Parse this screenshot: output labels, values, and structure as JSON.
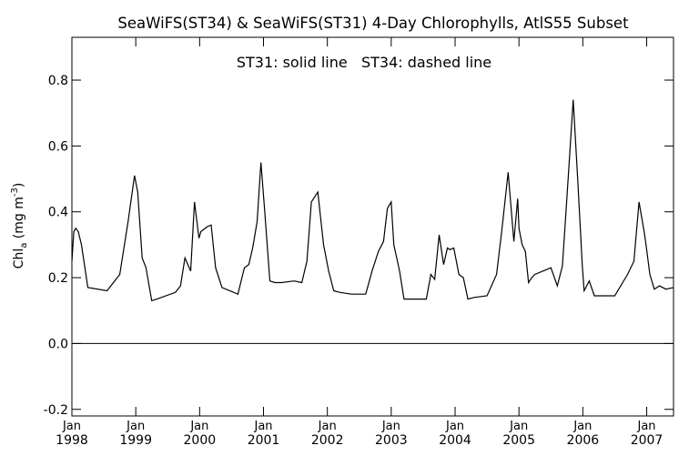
{
  "chart_data": {
    "type": "line",
    "title": "SeaWiFS(ST34) & SeaWiFS(ST31) 4-Day Chlorophylls, AtlS55 Subset",
    "annotation": "ST31: solid line   ST34: dashed line",
    "ylabel": {
      "main": "Chl",
      "sub": "a",
      "unit_open": " (mg m",
      "unit_sup": "-3",
      "unit_close": ")"
    },
    "xlim": [
      1998.0,
      2007.42
    ],
    "ylim": [
      -0.22,
      0.93
    ],
    "y_ticks": [
      -0.2,
      0.0,
      0.2,
      0.4,
      0.6,
      0.8
    ],
    "y_tick_labels": [
      "-0.2",
      "0.0",
      "0.2",
      "0.4",
      "0.6",
      "0.8"
    ],
    "x_ticks": [
      1998,
      1999,
      2000,
      2001,
      2002,
      2003,
      2004,
      2005,
      2006,
      2007
    ],
    "x_tick_month": "Jan",
    "x_tick_years": [
      "1998",
      "1999",
      "2000",
      "2001",
      "2002",
      "2003",
      "2004",
      "2005",
      "2006",
      "2007"
    ],
    "zero_line": true,
    "grid": false,
    "series": [
      {
        "name": "ST31",
        "style": "solid",
        "color": "#000000",
        "x": [
          1998.0,
          1998.03,
          1998.06,
          1998.1,
          1998.15,
          1998.25,
          1998.55,
          1998.75,
          1998.88,
          1998.98,
          1999.03,
          1999.1,
          1999.16,
          1999.25,
          1999.33,
          1999.62,
          1999.7,
          1999.77,
          1999.86,
          1999.92,
          1999.99,
          2000.02,
          2000.12,
          2000.18,
          2000.25,
          2000.35,
          2000.6,
          2000.7,
          2000.77,
          2000.83,
          2000.9,
          2000.96,
          2001.02,
          2001.1,
          2001.18,
          2001.28,
          2001.48,
          2001.6,
          2001.68,
          2001.75,
          2001.85,
          2001.94,
          2002.02,
          2002.1,
          2002.2,
          2002.38,
          2002.6,
          2002.7,
          2002.8,
          2002.88,
          2002.94,
          2003.0,
          2003.04,
          2003.13,
          2003.2,
          2003.26,
          2003.55,
          2003.62,
          2003.68,
          2003.75,
          2003.82,
          2003.88,
          2003.92,
          2003.98,
          2004.06,
          2004.13,
          2004.2,
          2004.3,
          2004.5,
          2004.65,
          2004.73,
          2004.83,
          2004.92,
          2004.98,
          2005.0,
          2005.05,
          2005.1,
          2005.15,
          2005.2,
          2005.25,
          2005.5,
          2005.6,
          2005.68,
          2005.75,
          2005.85,
          2005.92,
          2005.99,
          2006.02,
          2006.1,
          2006.18,
          2006.26,
          2006.32,
          2006.5,
          2006.7,
          2006.8,
          2006.88,
          2006.96,
          2006.99,
          2007.05,
          2007.12,
          2007.2,
          2007.3,
          2007.42
        ],
        "y": [
          0.25,
          0.34,
          0.35,
          0.34,
          0.3,
          0.17,
          0.16,
          0.21,
          0.37,
          0.51,
          0.46,
          0.26,
          0.23,
          0.13,
          0.135,
          0.155,
          0.175,
          0.26,
          0.22,
          0.43,
          0.32,
          0.34,
          0.355,
          0.36,
          0.23,
          0.17,
          0.15,
          0.23,
          0.24,
          0.29,
          0.37,
          0.55,
          0.4,
          0.19,
          0.185,
          0.185,
          0.19,
          0.185,
          0.25,
          0.43,
          0.46,
          0.3,
          0.22,
          0.16,
          0.155,
          0.15,
          0.15,
          0.22,
          0.28,
          0.31,
          0.41,
          0.43,
          0.3,
          0.22,
          0.135,
          0.135,
          0.135,
          0.21,
          0.195,
          0.33,
          0.24,
          0.29,
          0.285,
          0.29,
          0.21,
          0.2,
          0.135,
          0.14,
          0.145,
          0.21,
          0.34,
          0.52,
          0.31,
          0.44,
          0.35,
          0.3,
          0.28,
          0.185,
          0.2,
          0.21,
          0.23,
          0.175,
          0.235,
          0.44,
          0.74,
          0.5,
          0.24,
          0.16,
          0.19,
          0.145,
          0.145,
          0.145,
          0.145,
          0.21,
          0.25,
          0.43,
          0.34,
          0.3,
          0.21,
          0.165,
          0.175,
          0.165,
          0.17
        ]
      }
    ]
  }
}
